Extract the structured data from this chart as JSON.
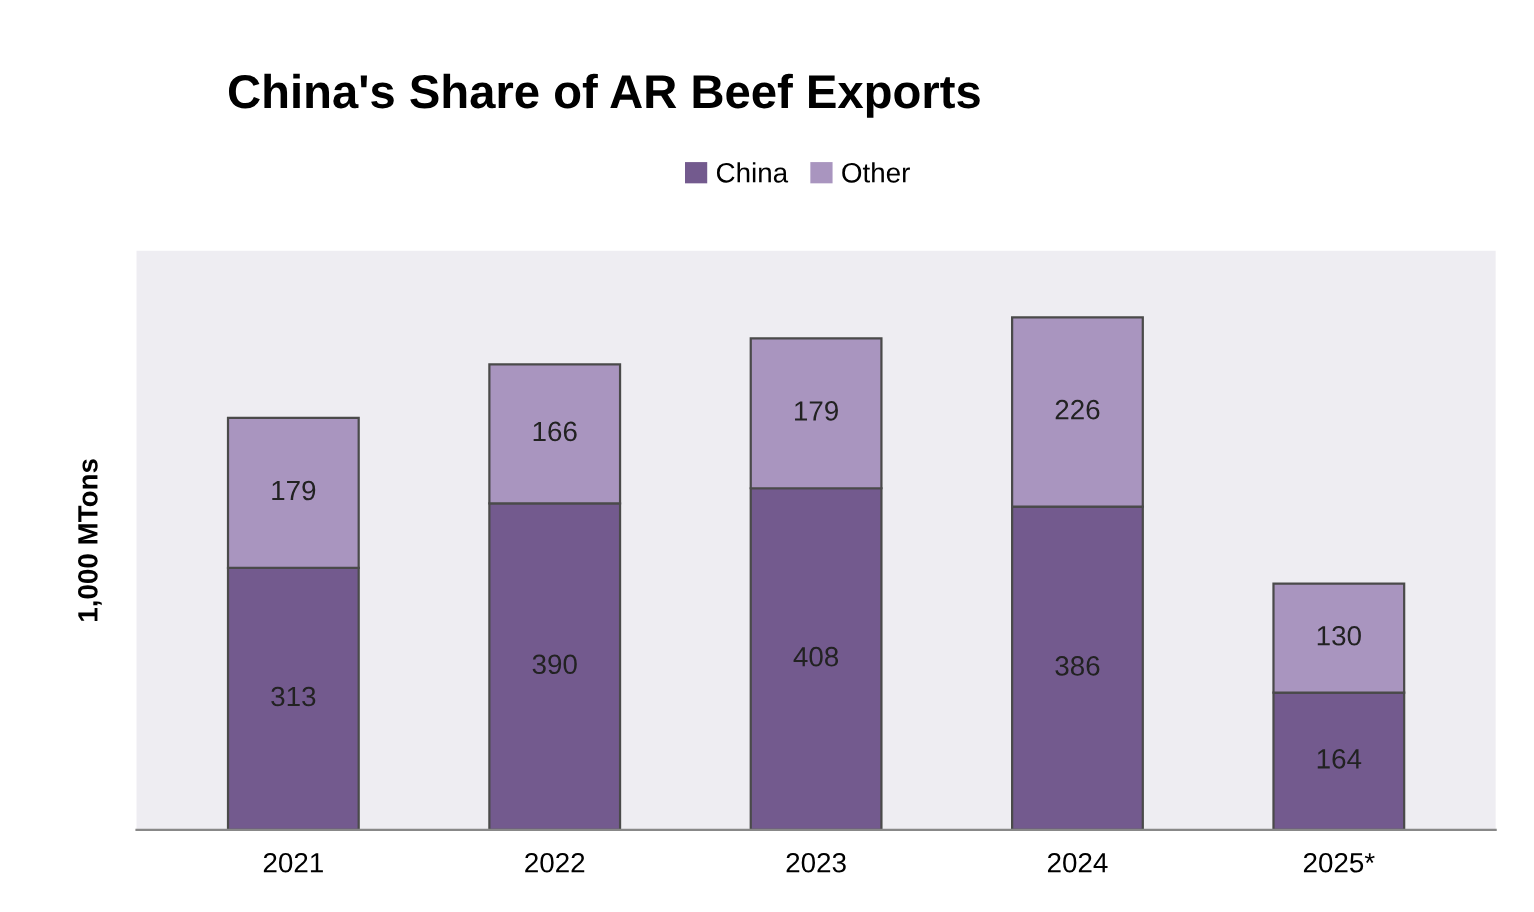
{
  "chart_data": {
    "type": "bar",
    "title": "China's Share of AR Beef Exports",
    "ylabel": "1,000 MTons",
    "categories": [
      "2021",
      "2022",
      "2023",
      "2024",
      "2025*"
    ],
    "stacked": true,
    "data_labels": true,
    "legend": "top",
    "grid": false,
    "tick_labels": "x",
    "series": [
      {
        "name": "China",
        "color": "#735a8e",
        "values": [
          313,
          390,
          408,
          386,
          164
        ]
      },
      {
        "name": "Other",
        "color": "#a995bf",
        "values": [
          179,
          166,
          179,
          226,
          130
        ]
      }
    ]
  }
}
